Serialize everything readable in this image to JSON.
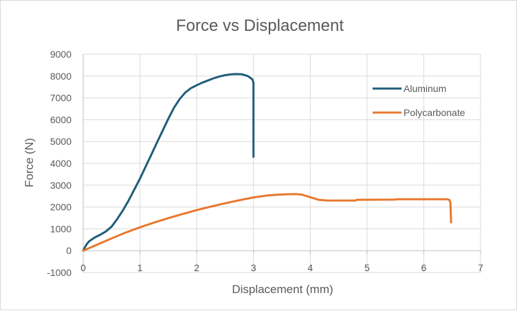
{
  "chart_data": {
    "type": "line",
    "title": "Force vs Displacement",
    "xlabel": "Displacement (mm)",
    "ylabel": "Force (N)",
    "xlim": [
      0,
      7
    ],
    "ylim": [
      -1000,
      9000
    ],
    "x_ticks": [
      0,
      1,
      2,
      3,
      4,
      5,
      6,
      7
    ],
    "y_ticks": [
      -1000,
      0,
      1000,
      2000,
      3000,
      4000,
      5000,
      6000,
      7000,
      8000,
      9000
    ],
    "grid": true,
    "legend_position": "right",
    "series": [
      {
        "name": "Aluminum",
        "color": "#1f5c7a",
        "points": [
          [
            0,
            0
          ],
          [
            0.05,
            250
          ],
          [
            0.1,
            420
          ],
          [
            0.2,
            600
          ],
          [
            0.3,
            730
          ],
          [
            0.4,
            880
          ],
          [
            0.5,
            1100
          ],
          [
            0.6,
            1450
          ],
          [
            0.7,
            1850
          ],
          [
            0.8,
            2300
          ],
          [
            0.9,
            2800
          ],
          [
            1.0,
            3300
          ],
          [
            1.1,
            3850
          ],
          [
            1.2,
            4400
          ],
          [
            1.3,
            4950
          ],
          [
            1.4,
            5500
          ],
          [
            1.5,
            6050
          ],
          [
            1.6,
            6550
          ],
          [
            1.7,
            6950
          ],
          [
            1.8,
            7250
          ],
          [
            1.9,
            7450
          ],
          [
            2.0,
            7580
          ],
          [
            2.1,
            7700
          ],
          [
            2.2,
            7800
          ],
          [
            2.3,
            7900
          ],
          [
            2.4,
            7980
          ],
          [
            2.5,
            8040
          ],
          [
            2.6,
            8080
          ],
          [
            2.7,
            8090
          ],
          [
            2.8,
            8080
          ],
          [
            2.9,
            8000
          ],
          [
            2.98,
            7850
          ],
          [
            3.0,
            7700
          ],
          [
            3.0,
            6000
          ],
          [
            3.0,
            4300
          ]
        ]
      },
      {
        "name": "Polycarbonate",
        "color": "#e8772e",
        "points": [
          [
            0,
            0
          ],
          [
            0.25,
            280
          ],
          [
            0.5,
            560
          ],
          [
            0.75,
            830
          ],
          [
            1.0,
            1070
          ],
          [
            1.25,
            1290
          ],
          [
            1.5,
            1490
          ],
          [
            1.75,
            1680
          ],
          [
            2.0,
            1860
          ],
          [
            2.25,
            2020
          ],
          [
            2.5,
            2170
          ],
          [
            2.75,
            2310
          ],
          [
            3.0,
            2440
          ],
          [
            3.25,
            2530
          ],
          [
            3.5,
            2580
          ],
          [
            3.75,
            2590
          ],
          [
            3.85,
            2570
          ],
          [
            4.0,
            2450
          ],
          [
            4.15,
            2330
          ],
          [
            4.3,
            2300
          ],
          [
            4.8,
            2300
          ],
          [
            4.82,
            2330
          ],
          [
            5.5,
            2340
          ],
          [
            5.52,
            2360
          ],
          [
            6.4,
            2360
          ],
          [
            6.45,
            2330
          ],
          [
            6.47,
            2200
          ],
          [
            6.48,
            1300
          ]
        ]
      }
    ]
  }
}
